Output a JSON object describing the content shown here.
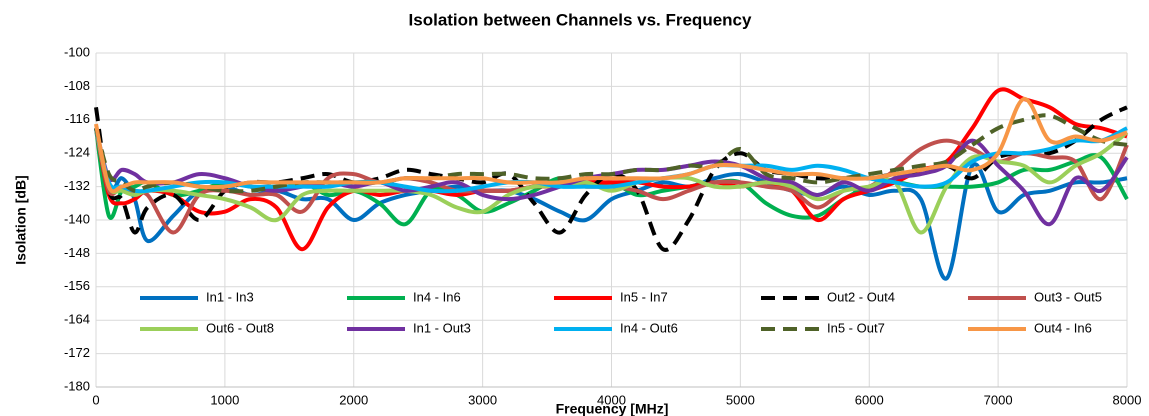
{
  "chart_data": {
    "type": "line",
    "title": "Isolation between Channels vs. Frequency",
    "x_label": "Frequency [MHz]",
    "y_label": "Isolation [dB]",
    "x": [
      0,
      100,
      200,
      300,
      400,
      600,
      800,
      1000,
      1200,
      1400,
      1600,
      1800,
      2000,
      2200,
      2400,
      2600,
      2800,
      3000,
      3200,
      3400,
      3600,
      3800,
      4000,
      4200,
      4400,
      4600,
      4800,
      5000,
      5200,
      5400,
      5600,
      5800,
      6000,
      6200,
      6400,
      6600,
      6800,
      7000,
      7200,
      7400,
      7600,
      7800,
      8000
    ],
    "xlim": [
      0,
      8000
    ],
    "xticks": [
      0,
      1000,
      2000,
      3000,
      4000,
      5000,
      6000,
      7000,
      8000
    ],
    "ylim": [
      -180,
      -100
    ],
    "yticks": [
      -100,
      -108,
      -116,
      -124,
      -132,
      -140,
      -148,
      -156,
      -164,
      -172,
      -180
    ],
    "grid": true,
    "smooth": true,
    "legend": "bottom",
    "series": [
      {
        "name": "In1 - In3",
        "color": "#0070c0",
        "dashed": false,
        "values": [
          -118,
          -133,
          -130,
          -135,
          -145,
          -139,
          -133,
          -132,
          -134,
          -133,
          -135,
          -135,
          -140,
          -136,
          -134,
          -133,
          -132,
          -133,
          -133,
          -135,
          -138,
          -140,
          -135,
          -133,
          -131,
          -132,
          -130,
          -129,
          -131,
          -133,
          -134,
          -132,
          -134,
          -133,
          -135,
          -154,
          -127,
          -138,
          -134,
          -133,
          -131,
          -131,
          -130
        ]
      },
      {
        "name": "In4 - In6",
        "color": "#00b050",
        "dashed": false,
        "values": [
          -118,
          -139,
          -133,
          -132,
          -131,
          -134,
          -133,
          -131,
          -132,
          -133,
          -131,
          -134,
          -133,
          -136,
          -141,
          -133,
          -134,
          -138,
          -136,
          -133,
          -130,
          -132,
          -131,
          -134,
          -133,
          -132,
          -131,
          -131,
          -136,
          -139,
          -139,
          -135,
          -132,
          -131,
          -132,
          -132,
          -132,
          -131,
          -128,
          -128,
          -126,
          -125,
          -135
        ]
      },
      {
        "name": "In5 - In7",
        "color": "#ff0000",
        "dashed": false,
        "values": [
          -118,
          -134,
          -136,
          -135,
          -133,
          -134,
          -138,
          -138,
          -135,
          -137,
          -147,
          -137,
          -133,
          -134,
          -133,
          -133,
          -134,
          -133,
          -133,
          -132,
          -132,
          -131,
          -131,
          -131,
          -132,
          -132,
          -131,
          -132,
          -131,
          -133,
          -140,
          -135,
          -133,
          -131,
          -128,
          -126,
          -118,
          -109,
          -111,
          -113,
          -117,
          -118,
          -120
        ]
      },
      {
        "name": "Out2 - Out4",
        "color": "#000000",
        "dashed": true,
        "values": [
          -113,
          -133,
          -135,
          -143,
          -137,
          -134,
          -140,
          -133,
          -131,
          -131,
          -130,
          -129,
          -131,
          -130,
          -128,
          -129,
          -130,
          -131,
          -129,
          -136,
          -143,
          -134,
          -129,
          -133,
          -147,
          -140,
          -128,
          -124,
          -128,
          -129,
          -130,
          -130,
          -130,
          -129,
          -129,
          -127,
          -130,
          -125,
          -124,
          -124,
          -121,
          -116,
          -113
        ]
      },
      {
        "name": "Out3 - Out5",
        "color": "#c0504d",
        "dashed": false,
        "values": [
          -118,
          -133,
          -132,
          -134,
          -134,
          -143,
          -134,
          -133,
          -134,
          -134,
          -138,
          -130,
          -129,
          -131,
          -130,
          -131,
          -133,
          -133,
          -133,
          -132,
          -131,
          -132,
          -132,
          -133,
          -135,
          -133,
          -131,
          -131,
          -132,
          -133,
          -137,
          -133,
          -132,
          -128,
          -123,
          -121,
          -123,
          -126,
          -124,
          -125,
          -126,
          -135,
          -122
        ]
      },
      {
        "name": "Out6 - Out8",
        "color": "#9bcf5a",
        "dashed": false,
        "values": [
          -118,
          -132,
          -133,
          -134,
          -133,
          -133,
          -134,
          -135,
          -137,
          -140,
          -134,
          -133,
          -133,
          -133,
          -133,
          -134,
          -137,
          -138,
          -134,
          -132,
          -132,
          -131,
          -133,
          -131,
          -130,
          -130,
          -132,
          -132,
          -131,
          -132,
          -135,
          -133,
          -132,
          -131,
          -143,
          -132,
          -125,
          -126,
          -127,
          -131,
          -127,
          -124,
          -119
        ]
      },
      {
        "name": "In1 - Out3",
        "color": "#7030a0",
        "dashed": false,
        "values": [
          -118,
          -130,
          -128,
          -129,
          -131,
          -131,
          -129,
          -130,
          -132,
          -133,
          -132,
          -131,
          -132,
          -131,
          -133,
          -132,
          -131,
          -134,
          -135,
          -134,
          -132,
          -130,
          -129,
          -128,
          -128,
          -127,
          -126,
          -127,
          -130,
          -131,
          -134,
          -131,
          -133,
          -130,
          -129,
          -127,
          -121,
          -127,
          -133,
          -141,
          -130,
          -133,
          -125
        ]
      },
      {
        "name": "In4 - Out6",
        "color": "#00b0f0",
        "dashed": false,
        "values": [
          -118,
          -131,
          -132,
          -133,
          -133,
          -132,
          -131,
          -131,
          -132,
          -132,
          -132,
          -132,
          -131,
          -131,
          -132,
          -133,
          -133,
          -132,
          -131,
          -131,
          -132,
          -132,
          -132,
          -131,
          -130,
          -129,
          -127,
          -127,
          -127,
          -128,
          -127,
          -128,
          -130,
          -131,
          -132,
          -131,
          -126,
          -124,
          -124,
          -123,
          -121,
          -121,
          -118
        ]
      },
      {
        "name": "In5 - Out7",
        "color": "#4f6228",
        "dashed": true,
        "values": [
          -118,
          -129,
          -131,
          -133,
          -132,
          -131,
          -132,
          -133,
          -133,
          -132,
          -131,
          -131,
          -131,
          -131,
          -130,
          -130,
          -129,
          -129,
          -129,
          -130,
          -130,
          -129,
          -129,
          -128,
          -128,
          -127,
          -127,
          -123,
          -129,
          -130,
          -131,
          -130,
          -129,
          -128,
          -127,
          -126,
          -122,
          -118,
          -116,
          -115,
          -118,
          -121,
          -122
        ]
      },
      {
        "name": "Out4 - In6",
        "color": "#f79646",
        "dashed": false,
        "values": [
          -117,
          -132,
          -132,
          -131,
          -131,
          -131,
          -132,
          -132,
          -131,
          -131,
          -131,
          -131,
          -131,
          -131,
          -130,
          -130,
          -130,
          -130,
          -131,
          -131,
          -131,
          -130,
          -130,
          -130,
          -130,
          -129,
          -127,
          -127,
          -128,
          -129,
          -129,
          -130,
          -130,
          -129,
          -128,
          -127,
          -128,
          -124,
          -111,
          -121,
          -120,
          -121,
          -119
        ]
      }
    ]
  }
}
